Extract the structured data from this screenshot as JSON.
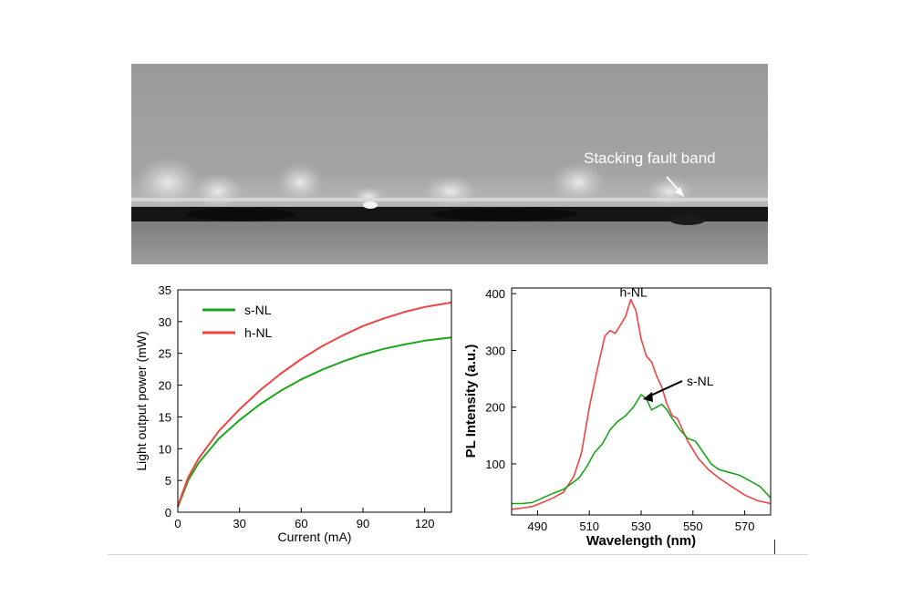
{
  "tem_image": {
    "annotation": "Stacking fault band"
  },
  "chart_data": [
    {
      "type": "line",
      "xlabel": "Current (mA)",
      "ylabel": "Light output power (mW)",
      "xlim": [
        0,
        133
      ],
      "ylim": [
        0,
        35
      ],
      "xticks": [
        0,
        30,
        60,
        90,
        120
      ],
      "yticks": [
        0,
        5,
        10,
        15,
        20,
        25,
        30,
        35
      ],
      "legend_position": "top-left",
      "series": [
        {
          "name": "s-NL",
          "color": "#1aa61a",
          "x": [
            0,
            5,
            10,
            20,
            30,
            40,
            50,
            60,
            70,
            80,
            90,
            100,
            110,
            120,
            133
          ],
          "y": [
            0.8,
            5.0,
            7.7,
            11.6,
            14.5,
            17.0,
            19.1,
            20.9,
            22.4,
            23.7,
            24.8,
            25.7,
            26.4,
            27.0,
            27.5
          ]
        },
        {
          "name": "h-NL",
          "color": "#ee4444",
          "x": [
            0,
            5,
            10,
            20,
            30,
            40,
            50,
            60,
            70,
            80,
            90,
            100,
            110,
            120,
            133
          ],
          "y": [
            1.0,
            5.5,
            8.4,
            12.8,
            16.2,
            19.2,
            21.8,
            24.1,
            26.1,
            27.8,
            29.3,
            30.5,
            31.5,
            32.3,
            33.0
          ]
        }
      ]
    },
    {
      "type": "line",
      "xlabel": "Wavelength (nm)",
      "ylabel": "PL Intensity (a.u.)",
      "xlim": [
        480,
        580
      ],
      "ylim": [
        10,
        410
      ],
      "xticks": [
        490,
        510,
        530,
        550,
        570
      ],
      "yticks": [
        100,
        200,
        300,
        400
      ],
      "annotations": [
        {
          "text": "h-NL",
          "series": "h-NL"
        },
        {
          "text": "s-NL",
          "series": "s-NL"
        }
      ],
      "series": [
        {
          "name": "h-NL",
          "color": "#ee4444",
          "x": [
            480,
            484,
            488,
            492,
            496,
            500,
            504,
            507,
            510,
            513,
            516,
            518,
            520,
            522,
            524,
            526,
            528,
            530,
            532,
            534,
            536,
            538,
            540,
            542,
            544,
            546,
            548,
            552,
            556,
            560,
            565,
            570,
            575,
            580
          ],
          "y": [
            20,
            22,
            25,
            32,
            40,
            50,
            78,
            120,
            200,
            265,
            325,
            335,
            330,
            345,
            360,
            390,
            370,
            320,
            290,
            280,
            255,
            235,
            205,
            185,
            180,
            160,
            140,
            110,
            90,
            75,
            60,
            45,
            35,
            30
          ]
        },
        {
          "name": "s-NL",
          "color": "#1aa61a",
          "x": [
            480,
            484,
            488,
            492,
            496,
            500,
            503,
            506,
            509,
            512,
            515,
            518,
            521,
            524,
            527,
            530,
            532,
            534,
            536,
            538,
            540,
            542,
            545,
            548,
            551,
            554,
            557,
            560,
            564,
            568,
            572,
            576,
            580
          ],
          "y": [
            30,
            30,
            32,
            40,
            48,
            55,
            65,
            75,
            95,
            120,
            135,
            160,
            175,
            185,
            200,
            222,
            215,
            195,
            200,
            205,
            195,
            180,
            160,
            145,
            140,
            120,
            100,
            90,
            85,
            80,
            70,
            60,
            40
          ]
        }
      ]
    }
  ]
}
